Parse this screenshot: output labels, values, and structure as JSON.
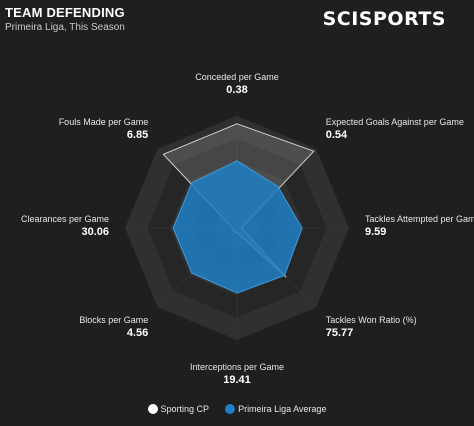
{
  "header": {
    "title": "TEAM DEFENDING",
    "subtitle": "Primeira Liga, This Season",
    "logo": "SCISPORTS"
  },
  "colors": {
    "background": "#1f1f1f",
    "ring_dark": "#262626",
    "ring_light": "#303030",
    "team": "#d9d9d9",
    "league": "#1e7fc4"
  },
  "chart_data": {
    "type": "radar",
    "title": "TEAM DEFENDING",
    "subtitle": "Primeira Liga, This Season",
    "axes": [
      {
        "name": "Conceded per Game",
        "value": "0.38"
      },
      {
        "name": "Expected Goals Against per Game",
        "value": "0.54"
      },
      {
        "name": "Tackles Attempted per Game",
        "value": "9.59"
      },
      {
        "name": "Tackles Won Ratio (%)",
        "value": "75.77"
      },
      {
        "name": "Interceptions per Game",
        "value": "19.41"
      },
      {
        "name": "Blocks per Game",
        "value": "4.56"
      },
      {
        "name": "Clearances per Game",
        "value": "30.06"
      },
      {
        "name": "Fouls Made per Game",
        "value": "6.85"
      }
    ],
    "rings": 5,
    "series": [
      {
        "name": "Sporting CP",
        "color": "#d9d9d9",
        "relative_values": [
          0.93,
          0.97,
          0.04,
          0.62,
          0.04,
          0.04,
          0.04,
          0.93
        ]
      },
      {
        "name": "Primeira Liga Average",
        "color": "#1e7fc4",
        "relative_values": [
          0.6,
          0.52,
          0.58,
          0.6,
          0.58,
          0.57,
          0.57,
          0.57
        ]
      }
    ],
    "legend": {
      "position": "bottom"
    }
  }
}
